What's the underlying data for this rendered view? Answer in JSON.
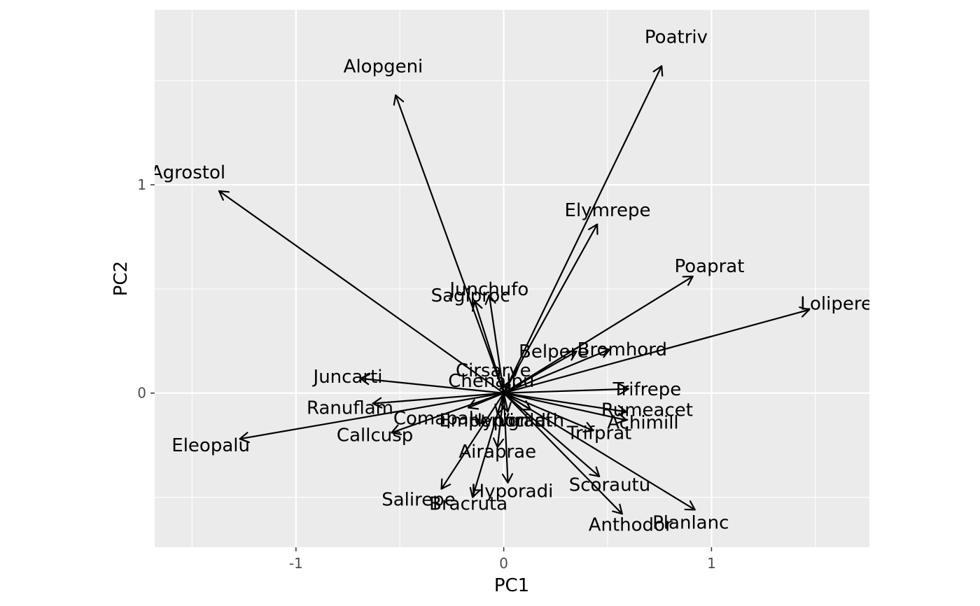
{
  "chart_data": {
    "type": "biplot",
    "xlabel": "PC1",
    "ylabel": "PC2",
    "xlim": [
      -1.68,
      1.76
    ],
    "ylim": [
      -0.74,
      1.84
    ],
    "x_ticks": [
      -1,
      0,
      1
    ],
    "x_tick_labels": [
      "-1",
      "0",
      "1"
    ],
    "y_ticks": [
      0,
      1
    ],
    "y_tick_labels": [
      "0",
      "1"
    ],
    "grid": true,
    "colors": {
      "panel_bg": "#ebebeb",
      "grid": "#ffffff",
      "arrow": "#000000",
      "tick_label": "#4d4d4d"
    },
    "vectors": [
      {
        "label": "Poatriv",
        "x": 0.76,
        "y": 1.57,
        "label_x": 0.83,
        "label_y": 1.71
      },
      {
        "label": "Alopgeni",
        "x": -0.52,
        "y": 1.43,
        "label_x": -0.58,
        "label_y": 1.57
      },
      {
        "label": "Agrostol",
        "x": -1.37,
        "y": 0.97,
        "label_x": -1.52,
        "label_y": 1.06
      },
      {
        "label": "Elymrepe",
        "x": 0.45,
        "y": 0.81,
        "label_x": 0.5,
        "label_y": 0.88
      },
      {
        "label": "Poaprat",
        "x": 0.91,
        "y": 0.56,
        "label_x": 0.99,
        "label_y": 0.61
      },
      {
        "label": "Lolipere",
        "x": 1.47,
        "y": 0.4,
        "label_x": 1.6,
        "label_y": 0.43
      },
      {
        "label": "Junchufo",
        "x": -0.07,
        "y": 0.47,
        "label_x": -0.07,
        "label_y": 0.5
      },
      {
        "label": "Sagiproc",
        "x": -0.14,
        "y": 0.44,
        "label_x": -0.16,
        "label_y": 0.47
      },
      {
        "label": "Belpere",
        "x": 0.35,
        "y": 0.2,
        "label_x": 0.24,
        "label_y": 0.2
      },
      {
        "label": "Bromhord",
        "x": 0.51,
        "y": 0.21,
        "label_x": 0.57,
        "label_y": 0.21
      },
      {
        "label": "Cirsarve",
        "x": 0.02,
        "y": 0.05,
        "label_x": -0.05,
        "label_y": 0.11
      },
      {
        "label": "Chenalbu",
        "x": 0.03,
        "y": 0.04,
        "label_x": -0.06,
        "label_y": 0.06
      },
      {
        "label": "Juncarti",
        "x": -0.69,
        "y": 0.07,
        "label_x": -0.75,
        "label_y": 0.08
      },
      {
        "label": "Trifrepe",
        "x": 0.6,
        "y": 0.02,
        "label_x": 0.69,
        "label_y": 0.02
      },
      {
        "label": "Ranuflam",
        "x": -0.63,
        "y": -0.05,
        "label_x": -0.74,
        "label_y": -0.07
      },
      {
        "label": "Rumeacet",
        "x": 0.59,
        "y": -0.09,
        "label_x": 0.69,
        "label_y": -0.08
      },
      {
        "label": "Achimill",
        "x": 0.59,
        "y": -0.13,
        "label_x": 0.67,
        "label_y": -0.14
      },
      {
        "label": "Callcusp",
        "x": -0.54,
        "y": -0.19,
        "label_x": -0.62,
        "label_y": -0.2
      },
      {
        "label": "Comapalu",
        "x": -0.17,
        "y": -0.07,
        "label_x": -0.31,
        "label_y": -0.12
      },
      {
        "label": "Empenigr",
        "x": -0.03,
        "y": -0.1,
        "label_x": -0.1,
        "label_y": -0.13
      },
      {
        "label": "Hyporadi",
        "x": 0.02,
        "y": -0.09,
        "label_x": 0.03,
        "label_y": -0.13
      },
      {
        "label": "Vicilath",
        "x": 0.13,
        "y": -0.08,
        "label_x": 0.13,
        "label_y": -0.13
      },
      {
        "label": "Trifprat",
        "x": 0.43,
        "y": -0.18,
        "label_x": 0.46,
        "label_y": -0.19
      },
      {
        "label": "Airaprae",
        "x": -0.03,
        "y": -0.26,
        "label_x": -0.03,
        "label_y": -0.28
      },
      {
        "label": "Scorautu",
        "x": 0.46,
        "y": -0.4,
        "label_x": 0.51,
        "label_y": -0.44
      },
      {
        "label": "Salirepe",
        "x": -0.3,
        "y": -0.46,
        "label_x": -0.41,
        "label_y": -0.51
      },
      {
        "label": "Hyporadi",
        "x": 0.02,
        "y": -0.43,
        "label_x": 0.04,
        "label_y": -0.47
      },
      {
        "label": "Bracruta",
        "x": -0.15,
        "y": -0.5,
        "label_x": -0.17,
        "label_y": -0.53
      },
      {
        "label": "Anthodor",
        "x": 0.57,
        "y": -0.58,
        "label_x": 0.61,
        "label_y": -0.63
      },
      {
        "label": "Planlanc",
        "x": 0.92,
        "y": -0.56,
        "label_x": 0.9,
        "label_y": -0.62
      },
      {
        "label": "Eleopalu",
        "x": -1.27,
        "y": -0.22,
        "label_x": -1.41,
        "label_y": -0.25
      }
    ]
  }
}
